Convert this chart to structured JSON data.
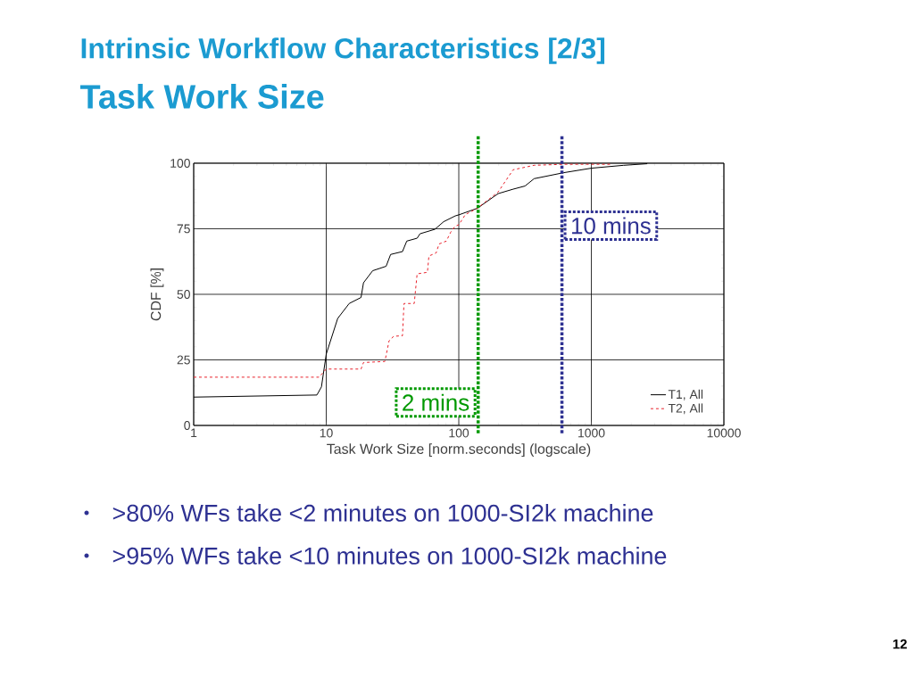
{
  "chart_data": {
    "type": "line",
    "title": "Intrinsic Workflow Characteristics [2/3]",
    "subtitle": "Task Work Size",
    "xlabel": "Task Work Size [norm.seconds] (logscale)",
    "ylabel": "CDF [%]",
    "log": "x",
    "xlim": [
      1,
      10000
    ],
    "xticks": [
      1,
      10,
      100,
      1000,
      10000
    ],
    "ylim": [
      0,
      100
    ],
    "yticks": [
      0,
      25,
      50,
      75,
      100
    ],
    "grid": true,
    "legend": "bottom right",
    "marker": "none",
    "series": [
      {
        "name": "T1, All",
        "color": "#000000",
        "line_style": "solid",
        "x": [
          1,
          8.5,
          9.2,
          10,
          12.2,
          14.9,
          18.3,
          19.1,
          22.4,
          28.3,
          30.6,
          37.6,
          40.5,
          48.5,
          51,
          66,
          76.9,
          94,
          100,
          138,
          198,
          257,
          316,
          370,
          621,
          1000,
          1750,
          2640
        ],
        "values": [
          10.8,
          11.6,
          14.7,
          27.2,
          40.8,
          46.5,
          48.8,
          54.4,
          59,
          60.7,
          65.2,
          66.3,
          70.3,
          71.4,
          73.1,
          74.8,
          77.7,
          79.9,
          80.3,
          82.8,
          88.4,
          90.1,
          91.3,
          94.1,
          96.4,
          98.1,
          99.2,
          99.8
        ]
      },
      {
        "name": "T2, All",
        "color": "#e8202a",
        "line_style": "dashed",
        "x": [
          1,
          8.8,
          10,
          18.3,
          19.1,
          27.7,
          29.8,
          32.3,
          37.6,
          38.6,
          46.1,
          48.5,
          58,
          59.5,
          67.5,
          71,
          80.5,
          86.9,
          94,
          100,
          112,
          138,
          198,
          257,
          370,
          621,
          1420
        ],
        "values": [
          18.4,
          18.4,
          21.5,
          21.5,
          24,
          24.4,
          32.3,
          34,
          34.2,
          46.5,
          46.5,
          57.8,
          58.4,
          64.6,
          65.8,
          69.2,
          70.3,
          73.7,
          76,
          76.5,
          80.4,
          82.8,
          89,
          97.5,
          99.2,
          99.6,
          99.6
        ]
      }
    ],
    "ref_lines": [
      {
        "axis": "x",
        "value": 140,
        "label": "2 mins",
        "color": "#009900",
        "line_style": "dotted"
      },
      {
        "axis": "x",
        "value": 600,
        "label": "10 mins",
        "color": "#2e3192",
        "line_style": "dotted"
      }
    ],
    "annotations": [
      ">80% WFs take <2 minutes on 1000-SI2k machine",
      ">95% WFs take <10 minutes on 1000-SI2k machine",
      "12"
    ]
  }
}
